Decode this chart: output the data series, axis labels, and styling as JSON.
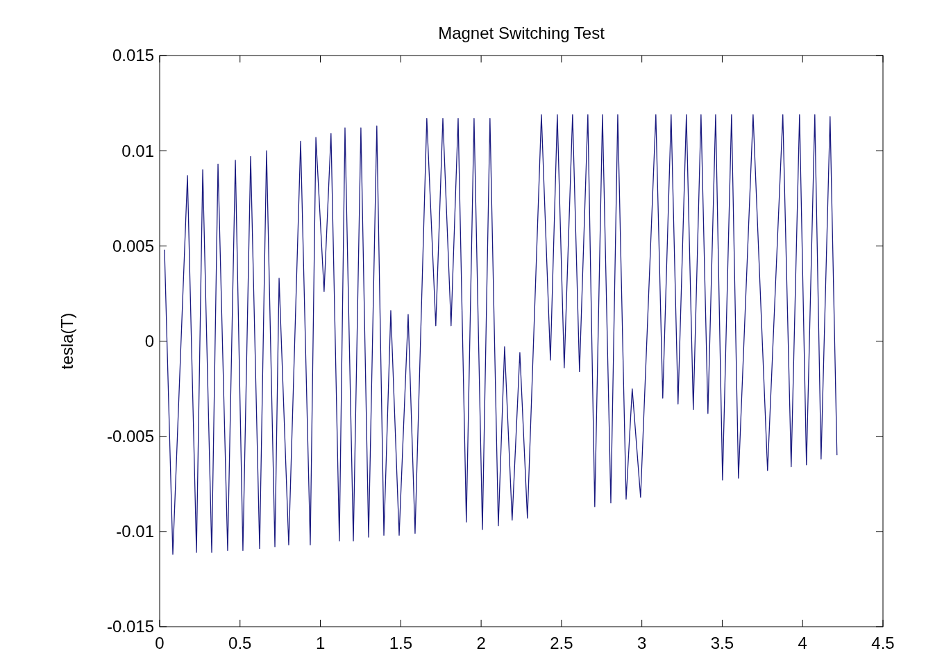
{
  "chart_data": {
    "type": "line",
    "title": "Magnet Switching Test",
    "ylabel": "tesla(T)",
    "xlim": [
      0,
      4.5
    ],
    "xticks": [
      0,
      0.5,
      1,
      1.5,
      2,
      2.5,
      3,
      3.5,
      4,
      4.5
    ],
    "ylim": [
      -0.015,
      0.015
    ],
    "yticks": [
      -0.015,
      -0.01,
      -0.005,
      0,
      0.005,
      0.01,
      0.015
    ],
    "grid": false,
    "series": [
      {
        "color": "#1a1a80",
        "x": [
          0.03,
          0.082,
          0.173,
          0.229,
          0.268,
          0.324,
          0.363,
          0.423,
          0.471,
          0.518,
          0.566,
          0.622,
          0.665,
          0.717,
          0.743,
          0.803,
          0.877,
          0.937,
          0.972,
          1.023,
          1.066,
          1.118,
          1.153,
          1.205,
          1.252,
          1.3,
          1.351,
          1.395,
          1.438,
          1.49,
          1.546,
          1.589,
          1.662,
          1.718,
          1.762,
          1.813,
          1.857,
          1.908,
          1.956,
          2.008,
          2.055,
          2.107,
          2.146,
          2.193,
          2.241,
          2.288,
          2.375,
          2.431,
          2.474,
          2.517,
          2.569,
          2.612,
          2.664,
          2.707,
          2.755,
          2.807,
          2.85,
          2.902,
          2.94,
          2.992,
          3.087,
          3.13,
          3.182,
          3.225,
          3.277,
          3.32,
          3.368,
          3.411,
          3.459,
          3.502,
          3.558,
          3.601,
          3.692,
          3.782,
          3.877,
          3.929,
          3.981,
          4.024,
          4.076,
          4.115,
          4.171,
          4.214
        ],
        "values": [
          0.0048,
          -0.0112,
          0.0087,
          -0.0111,
          0.009,
          -0.0111,
          0.0093,
          -0.011,
          0.0095,
          -0.011,
          0.0097,
          -0.0109,
          0.01,
          -0.0108,
          0.0033,
          -0.0107,
          0.0105,
          -0.0107,
          0.0107,
          0.0026,
          0.0109,
          -0.0105,
          0.0112,
          -0.0105,
          0.0112,
          -0.0103,
          0.0113,
          -0.0102,
          0.0016,
          -0.0102,
          0.0014,
          -0.0101,
          0.0117,
          0.0008,
          0.0117,
          0.0008,
          0.0117,
          -0.0095,
          0.0117,
          -0.0099,
          0.0117,
          -0.0097,
          -0.0003,
          -0.0094,
          -0.0006,
          -0.0093,
          0.0119,
          -0.001,
          0.0119,
          -0.0014,
          0.0119,
          -0.0016,
          0.0119,
          -0.0087,
          0.0119,
          -0.0085,
          0.0119,
          -0.0083,
          -0.0025,
          -0.0082,
          0.0119,
          -0.003,
          0.0119,
          -0.0033,
          0.0119,
          -0.0036,
          0.0119,
          -0.0038,
          0.0119,
          -0.0073,
          0.0119,
          -0.0072,
          0.0119,
          -0.0068,
          0.0119,
          -0.0066,
          0.0119,
          -0.0065,
          0.0119,
          -0.0062,
          0.0118,
          -0.006
        ]
      }
    ]
  }
}
